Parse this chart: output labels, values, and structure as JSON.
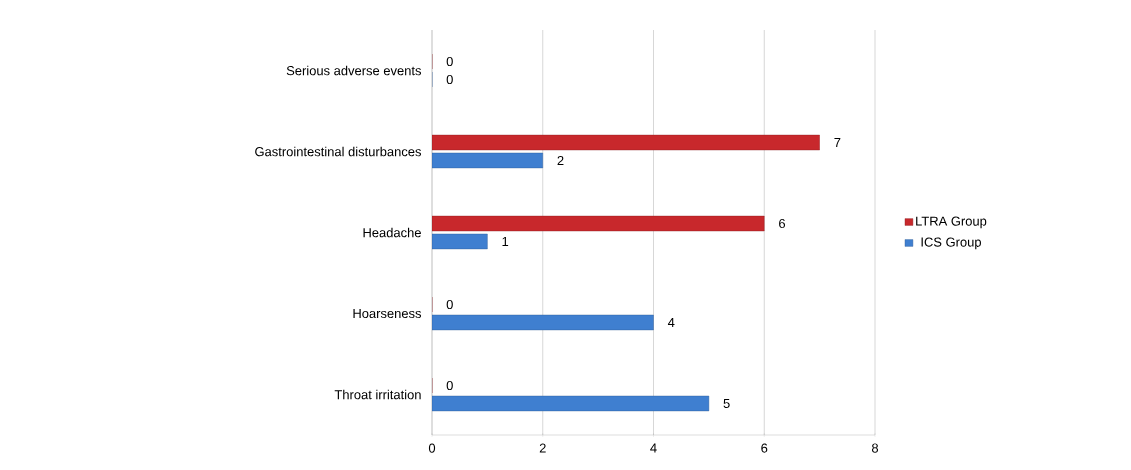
{
  "chart_data": {
    "type": "bar",
    "orientation": "horizontal",
    "categories": [
      "Serious adverse events",
      "Gastrointestinal disturbances",
      "Headache",
      "Hoarseness",
      "Throat irritation"
    ],
    "series": [
      {
        "name": "LTRA Group",
        "color": "#c8282c",
        "values": [
          0,
          7,
          6,
          0,
          0
        ]
      },
      {
        "name": "ICS Group",
        "color": "#3f7fd0",
        "values": [
          0,
          2,
          1,
          4,
          5
        ]
      }
    ],
    "xlim": [
      0,
      8
    ],
    "xticks": [
      0,
      2,
      4,
      6,
      8
    ],
    "grid": "x",
    "legend": "right",
    "data_labels": true
  }
}
